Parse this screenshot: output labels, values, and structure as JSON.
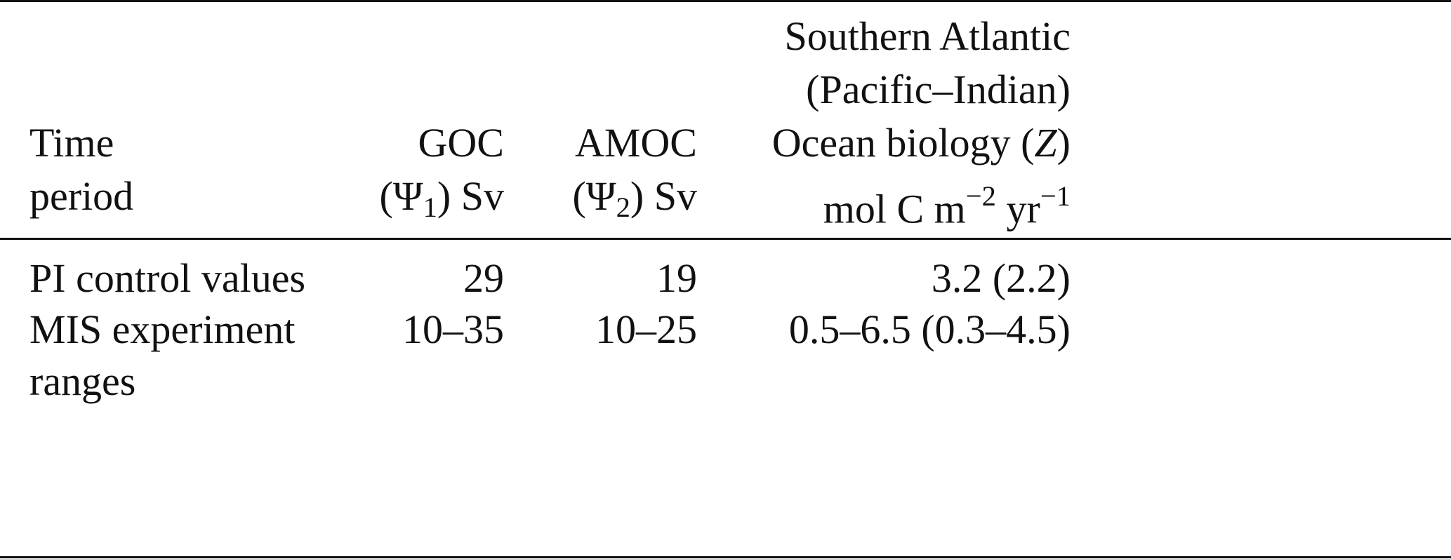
{
  "header": {
    "columns": [
      {
        "lines": [
          [
            {
              "text": "Time"
            }
          ],
          [
            {
              "text": "period"
            }
          ]
        ]
      },
      {
        "lines": [
          [
            {
              "text": "GOC"
            }
          ],
          [
            {
              "text": "(Ψ"
            },
            {
              "text": "1",
              "style": "sub"
            },
            {
              "text": ") Sv"
            }
          ]
        ]
      },
      {
        "lines": [
          [
            {
              "text": "AMOC"
            }
          ],
          [
            {
              "text": "(Ψ"
            },
            {
              "text": "2",
              "style": "sub"
            },
            {
              "text": ") Sv"
            }
          ]
        ]
      },
      {
        "lines": [
          [
            {
              "text": "Southern Atlantic"
            }
          ],
          [
            {
              "text": "(Pacific–Indian)"
            }
          ],
          [
            {
              "text": "Ocean biology ("
            },
            {
              "text": "Z",
              "style": "italic"
            },
            {
              "text": ")"
            }
          ],
          [
            {
              "text": "mol C m"
            },
            {
              "text": "−2",
              "style": "sup"
            },
            {
              "text": " yr"
            },
            {
              "text": "−1",
              "style": "sup"
            }
          ]
        ]
      }
    ]
  },
  "table": {
    "rows": [
      [
        "PI control values",
        "29",
        "19",
        "3.2 (2.2)"
      ],
      [
        "MIS experiment ranges",
        "10–35",
        "10–25",
        "0.5–6.5 (0.3–4.5)"
      ]
    ]
  }
}
